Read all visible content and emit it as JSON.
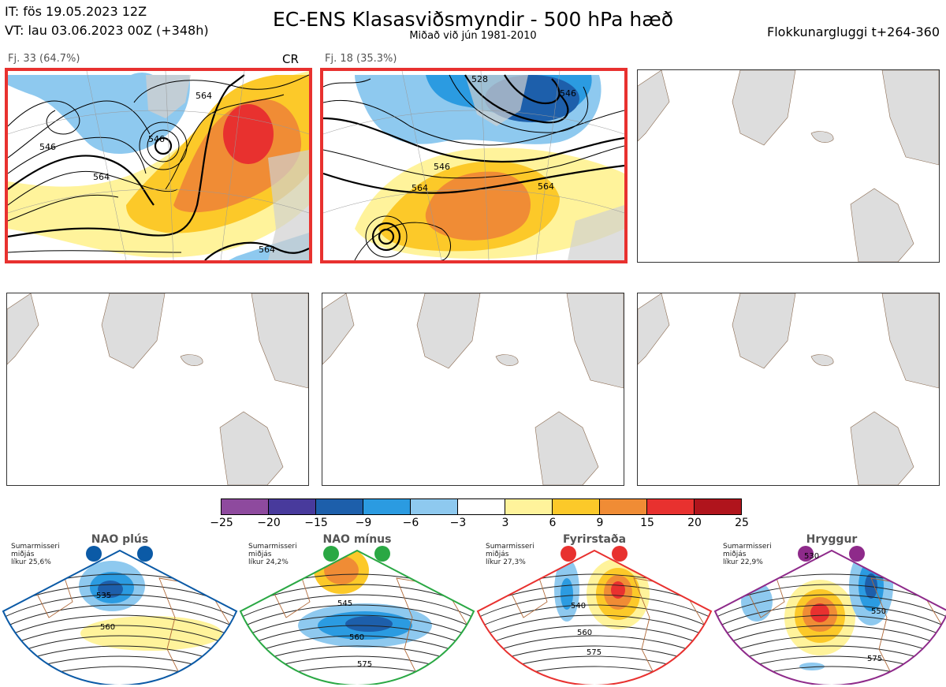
{
  "header": {
    "it_line": "IT: fös 19.05.2023 12Z",
    "vt_line": "VT: lau 03.06.2023 00Z  (+348h)",
    "title": "EC-ENS Klasasviðsmyndir - 500 hPa hæð",
    "subtitle": "Miðað við jún 1981-2010",
    "window": "Flokkunargluggi t+264-360"
  },
  "panels": [
    {
      "label": "Fj. 33 (64.7%)",
      "tag": "CR",
      "contours": [
        "546",
        "564",
        "564",
        "546",
        "564"
      ]
    },
    {
      "label": "Fj. 18 (35.3%)",
      "tag": "",
      "contours": [
        "528",
        "546",
        "546",
        "564",
        "564"
      ]
    }
  ],
  "colorbar": {
    "colors": [
      "#8e4a9e",
      "#483a9c",
      "#1d5fab",
      "#2b9be1",
      "#8ec9ef",
      "#ffffff",
      "#fff39b",
      "#fcc929",
      "#f08c35",
      "#e8312f",
      "#b0141c"
    ],
    "ticks": [
      "−25",
      "−20",
      "−15",
      "−9",
      "−6",
      "−3",
      "3",
      "6",
      "9",
      "15",
      "20",
      "25"
    ]
  },
  "regimes": [
    {
      "name": "NAO plús",
      "note": [
        "Sumarmisseri",
        "miðjás",
        "líkur 25,6%"
      ],
      "color": "#0b5aa6",
      "labels": [
        "535",
        "560"
      ]
    },
    {
      "name": "NAO mínus",
      "note": [
        "Sumarmisseri",
        "miðjás",
        "líkur 24,2%"
      ],
      "color": "#2aa844",
      "labels": [
        "545",
        "560",
        "575"
      ]
    },
    {
      "name": "Fyrirstaða",
      "note": [
        "Sumarmisseri",
        "miðjás",
        "líkur 27,3%"
      ],
      "color": "#e8312f",
      "labels": [
        "540",
        "560",
        "575"
      ]
    },
    {
      "name": "Hryggur",
      "note": [
        "Sumarmisseri",
        "miðjás",
        "líkur 22,9%"
      ],
      "color": "#8e2a8a",
      "labels": [
        "530",
        "550",
        "575"
      ]
    }
  ]
}
